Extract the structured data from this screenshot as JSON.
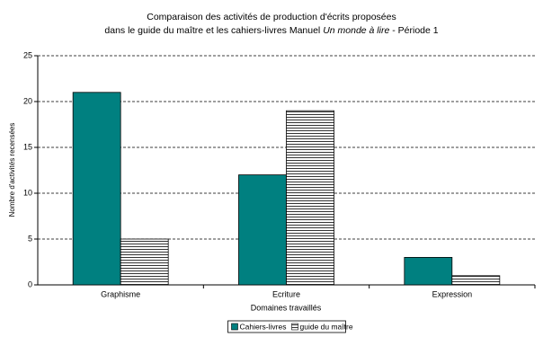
{
  "chart_data": {
    "type": "bar",
    "title": [
      "Comparaison des activités de production d'écrits proposées",
      "dans le guide du maître et les cahiers-livres Manuel",
      "Un monde à lire",
      "- Période 1"
    ],
    "x_label": "Domaines travaillés",
    "y_label": "Nombre d'activités recensées",
    "categories": [
      "Graphisme",
      "Ecriture",
      "Expression"
    ],
    "series": [
      {
        "name": "Cahiers-livres",
        "color": "#008080",
        "values": [
          21,
          12,
          3
        ]
      },
      {
        "name": "guide du maître",
        "color": "#000000",
        "hatch": "horizontal",
        "values": [
          5,
          19,
          1
        ]
      }
    ],
    "ylim": [
      0,
      25
    ],
    "yticks": [
      0,
      5,
      10,
      15,
      20,
      25
    ],
    "grid": true,
    "legend": "bottom"
  }
}
